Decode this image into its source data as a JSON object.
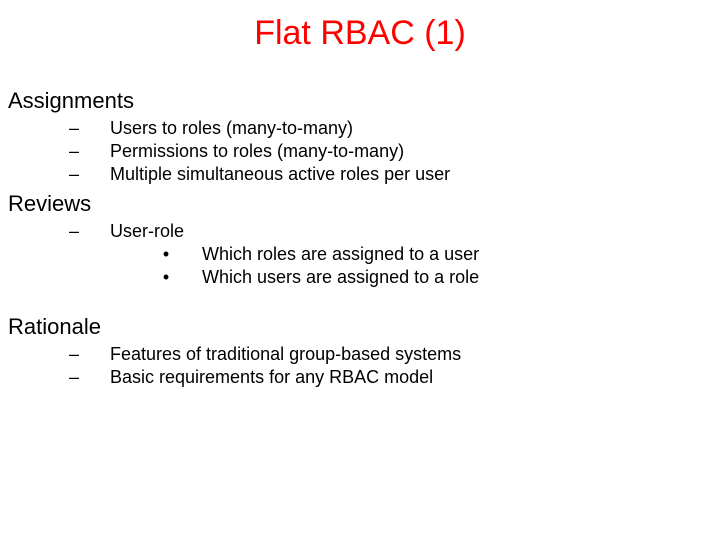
{
  "title": {
    "text": "Flat RBAC (1)",
    "color": "#ff0000",
    "fontsize": 34
  },
  "body_fontsize_h1": 22,
  "body_fontsize_item": 18,
  "colors": {
    "text": "#000000",
    "background": "#ffffff"
  },
  "bullets": {
    "level2": "–",
    "level3": "•"
  },
  "sections": [
    {
      "heading": "Assignments",
      "items": [
        {
          "text": "Users to roles (many-to-many)"
        },
        {
          "text": "Permissions to roles (many-to-many)"
        },
        {
          "text": "Multiple simultaneous active roles per user"
        }
      ]
    },
    {
      "heading": "Reviews",
      "items": [
        {
          "text": "User-role",
          "subitems": [
            {
              "text": "Which roles are assigned to a user"
            },
            {
              "text": "Which users are assigned to a role"
            }
          ]
        }
      ]
    },
    {
      "heading": "Rationale",
      "items": [
        {
          "text": "Features of traditional group-based systems"
        },
        {
          "text": "Basic requirements for any RBAC model"
        }
      ]
    }
  ]
}
